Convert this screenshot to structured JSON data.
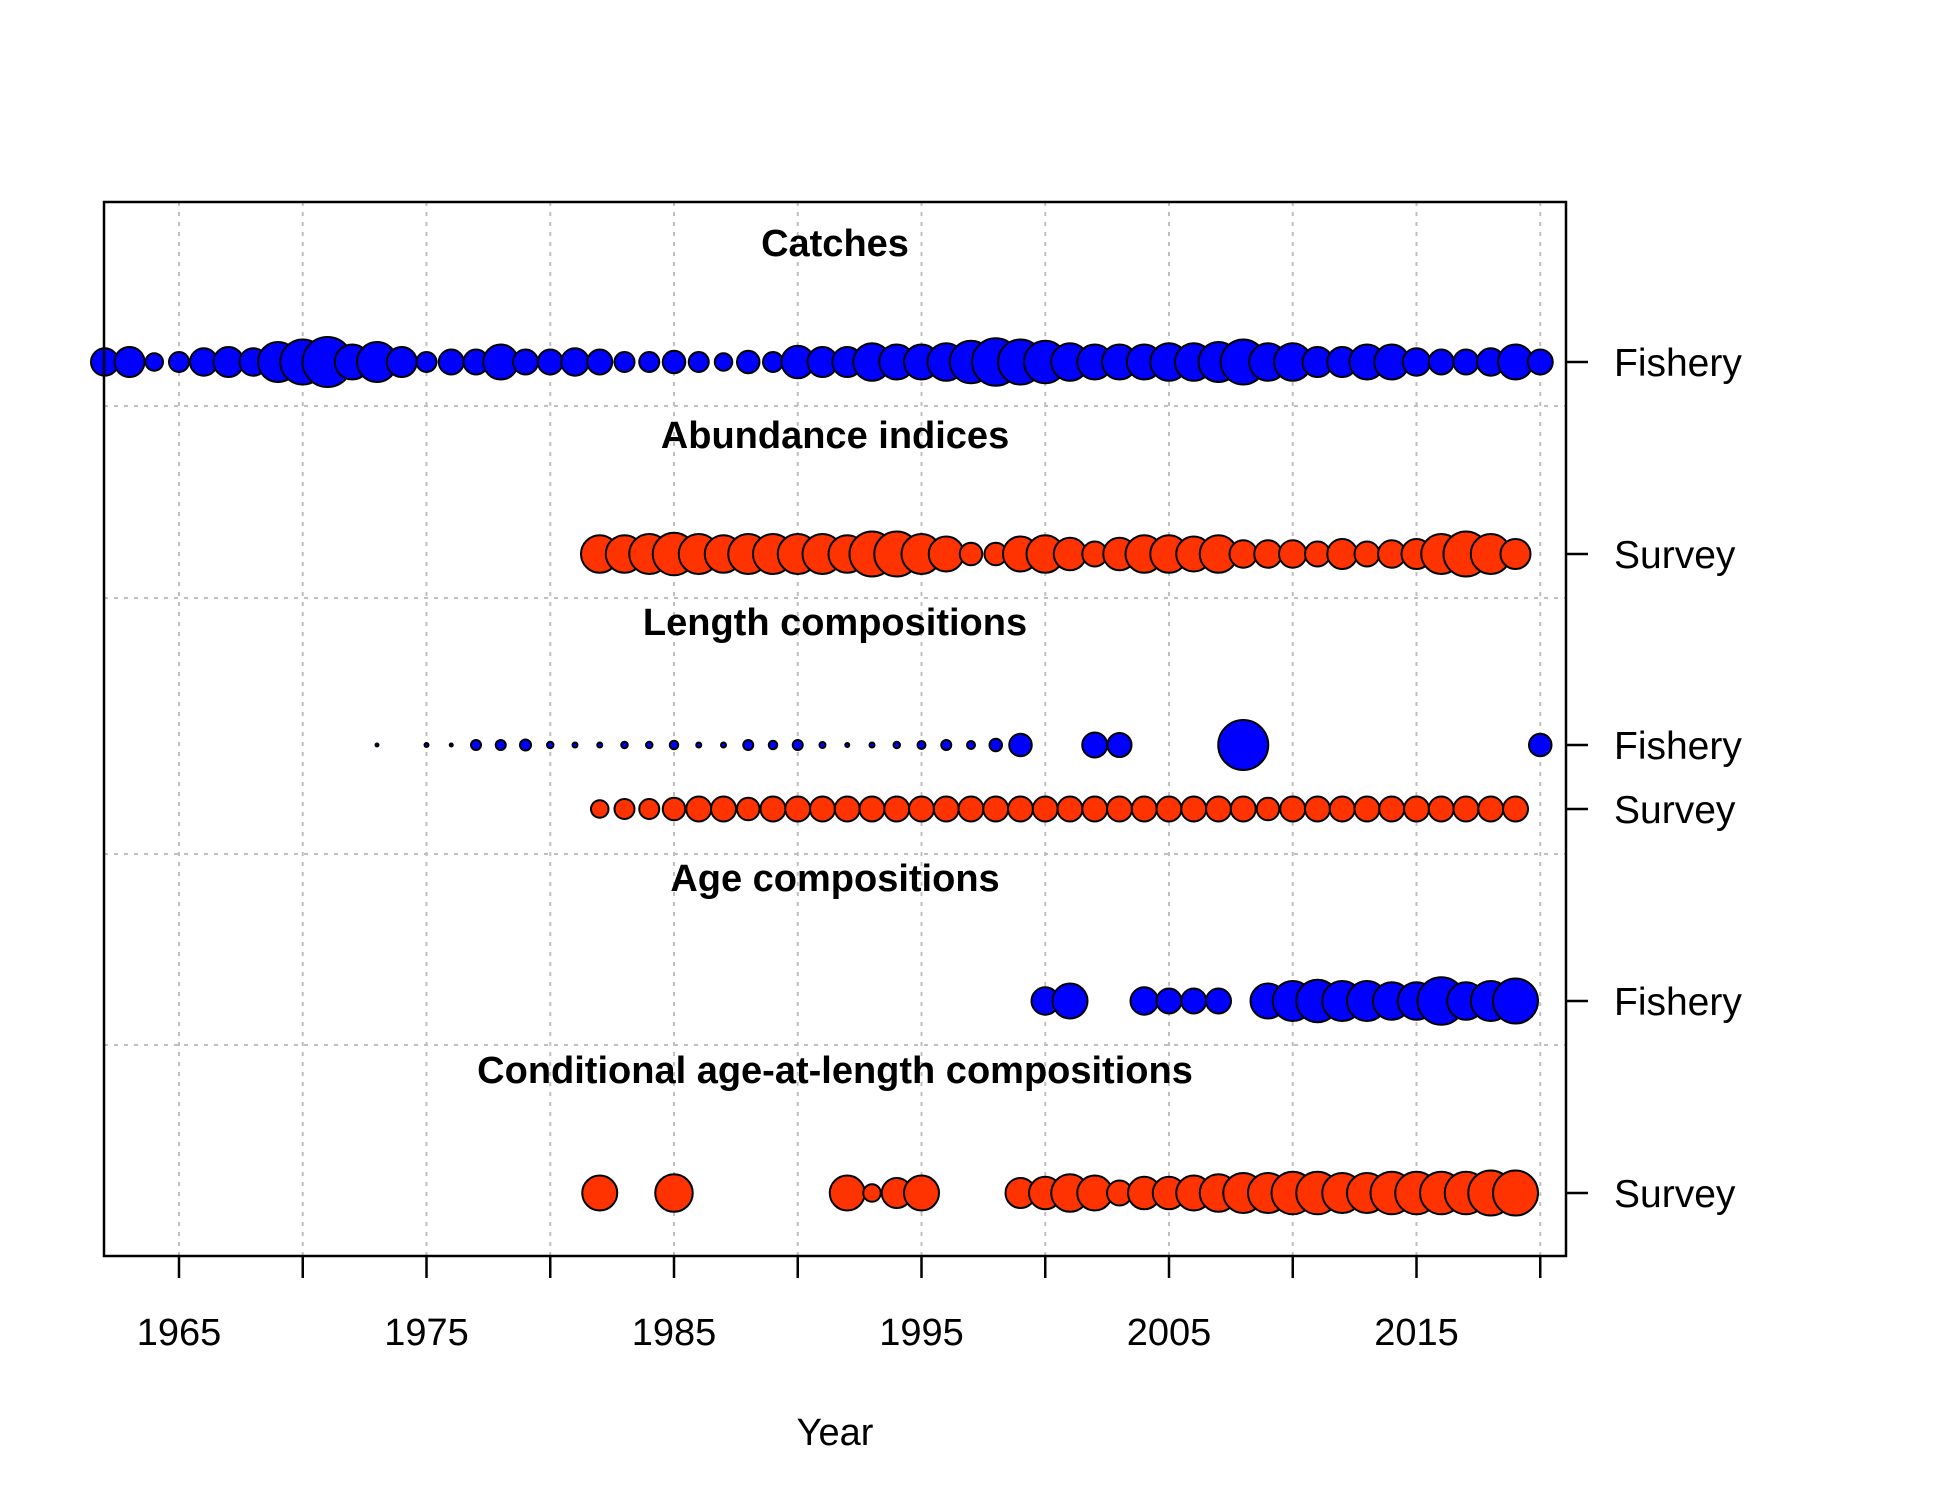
{
  "chart_data": {
    "type": "scatter",
    "subtype": "bubble-timeline",
    "xlabel": "Year",
    "xlim": [
      1962,
      2021
    ],
    "xticks": [
      1965,
      1975,
      1985,
      1995,
      2005,
      2015
    ],
    "grid": true,
    "colors": {
      "fishery": "#0000FF",
      "survey": "#FF3300",
      "grid": "#BFBFBF"
    },
    "panels": [
      {
        "title": "Catches",
        "rows": [
          {
            "label": "Fishery",
            "fleet": "fishery",
            "years": [
              1962,
              1963,
              1964,
              1965,
              1966,
              1967,
              1968,
              1969,
              1970,
              1971,
              1972,
              1973,
              1974,
              1975,
              1976,
              1977,
              1978,
              1979,
              1980,
              1981,
              1982,
              1983,
              1984,
              1985,
              1986,
              1987,
              1988,
              1989,
              1990,
              1991,
              1992,
              1993,
              1994,
              1995,
              1996,
              1997,
              1998,
              1999,
              2000,
              2001,
              2002,
              2003,
              2004,
              2005,
              2006,
              2007,
              2008,
              2009,
              2010,
              2011,
              2012,
              2013,
              2014,
              2015,
              2016,
              2017,
              2018,
              2019,
              2020
            ],
            "sizes": [
              0.55,
              0.6,
              0.35,
              0.4,
              0.55,
              0.6,
              0.55,
              0.8,
              0.9,
              1.0,
              0.7,
              0.8,
              0.6,
              0.4,
              0.5,
              0.5,
              0.7,
              0.5,
              0.5,
              0.55,
              0.5,
              0.4,
              0.4,
              0.45,
              0.4,
              0.35,
              0.45,
              0.4,
              0.65,
              0.6,
              0.6,
              0.75,
              0.7,
              0.7,
              0.75,
              0.85,
              0.95,
              0.9,
              0.85,
              0.75,
              0.7,
              0.7,
              0.7,
              0.75,
              0.75,
              0.8,
              0.9,
              0.75,
              0.75,
              0.6,
              0.6,
              0.7,
              0.7,
              0.55,
              0.5,
              0.5,
              0.55,
              0.7,
              0.5
            ]
          }
        ]
      },
      {
        "title": "Abundance indices",
        "rows": [
          {
            "label": "Survey",
            "fleet": "survey",
            "years": [
              1982,
              1983,
              1984,
              1985,
              1986,
              1987,
              1988,
              1989,
              1990,
              1991,
              1992,
              1993,
              1994,
              1995,
              1996,
              1997,
              1998,
              1999,
              2000,
              2001,
              2002,
              2003,
              2004,
              2005,
              2006,
              2007,
              2008,
              2009,
              2010,
              2011,
              2012,
              2013,
              2014,
              2015,
              2016,
              2017,
              2018,
              2019
            ],
            "sizes": [
              0.75,
              0.75,
              0.8,
              0.85,
              0.8,
              0.75,
              0.8,
              0.8,
              0.8,
              0.8,
              0.75,
              0.9,
              0.9,
              0.8,
              0.7,
              0.45,
              0.45,
              0.7,
              0.75,
              0.65,
              0.5,
              0.65,
              0.75,
              0.75,
              0.7,
              0.75,
              0.55,
              0.55,
              0.55,
              0.5,
              0.6,
              0.5,
              0.55,
              0.6,
              0.8,
              0.9,
              0.8,
              0.6
            ]
          }
        ]
      },
      {
        "title": "Length compositions",
        "rows": [
          {
            "label": "Fishery",
            "fleet": "fishery",
            "years": [
              1973,
              1975,
              1976,
              1977,
              1978,
              1979,
              1980,
              1981,
              1982,
              1983,
              1984,
              1985,
              1986,
              1987,
              1988,
              1989,
              1990,
              1991,
              1992,
              1993,
              1994,
              1995,
              1996,
              1997,
              1998,
              1999,
              2002,
              2003,
              2008,
              2020
            ],
            "sizes": [
              0.06,
              0.08,
              0.06,
              0.2,
              0.2,
              0.22,
              0.13,
              0.1,
              0.1,
              0.13,
              0.13,
              0.17,
              0.1,
              0.1,
              0.2,
              0.17,
              0.2,
              0.12,
              0.08,
              0.1,
              0.13,
              0.16,
              0.2,
              0.16,
              0.25,
              0.45,
              0.5,
              0.48,
              1.0,
              0.45
            ]
          },
          {
            "label": "Survey",
            "fleet": "survey",
            "years": [
              1982,
              1983,
              1984,
              1985,
              1986,
              1987,
              1988,
              1989,
              1990,
              1991,
              1992,
              1993,
              1994,
              1995,
              1996,
              1997,
              1998,
              1999,
              2000,
              2001,
              2002,
              2003,
              2004,
              2005,
              2006,
              2007,
              2008,
              2009,
              2010,
              2011,
              2012,
              2013,
              2014,
              2015,
              2016,
              2017,
              2018,
              2019
            ],
            "sizes": [
              0.35,
              0.4,
              0.4,
              0.45,
              0.5,
              0.5,
              0.45,
              0.5,
              0.5,
              0.5,
              0.5,
              0.5,
              0.5,
              0.5,
              0.5,
              0.5,
              0.5,
              0.5,
              0.5,
              0.5,
              0.5,
              0.5,
              0.5,
              0.5,
              0.5,
              0.5,
              0.5,
              0.45,
              0.5,
              0.5,
              0.5,
              0.5,
              0.5,
              0.5,
              0.5,
              0.5,
              0.5,
              0.5
            ]
          }
        ]
      },
      {
        "title": "Age compositions",
        "rows": [
          {
            "label": "Fishery",
            "fleet": "fishery",
            "years": [
              2000,
              2001,
              2004,
              2005,
              2006,
              2007,
              2009,
              2010,
              2011,
              2012,
              2013,
              2014,
              2015,
              2016,
              2017,
              2018,
              2019
            ],
            "sizes": [
              0.55,
              0.7,
              0.55,
              0.5,
              0.5,
              0.5,
              0.7,
              0.8,
              0.85,
              0.8,
              0.8,
              0.75,
              0.75,
              0.95,
              0.75,
              0.8,
              0.9
            ]
          }
        ]
      },
      {
        "title": "Conditional age-at-length compositions",
        "rows": [
          {
            "label": "Survey",
            "fleet": "survey",
            "years": [
              1982,
              1985,
              1992,
              1993,
              1994,
              1995,
              1999,
              2000,
              2001,
              2002,
              2003,
              2004,
              2005,
              2006,
              2007,
              2008,
              2009,
              2010,
              2011,
              2012,
              2013,
              2014,
              2015,
              2016,
              2017,
              2018,
              2019
            ],
            "sizes": [
              0.7,
              0.75,
              0.7,
              0.35,
              0.6,
              0.7,
              0.6,
              0.65,
              0.75,
              0.7,
              0.5,
              0.65,
              0.65,
              0.7,
              0.75,
              0.8,
              0.8,
              0.85,
              0.85,
              0.8,
              0.8,
              0.85,
              0.85,
              0.85,
              0.85,
              0.9,
              0.9
            ]
          }
        ]
      }
    ]
  }
}
